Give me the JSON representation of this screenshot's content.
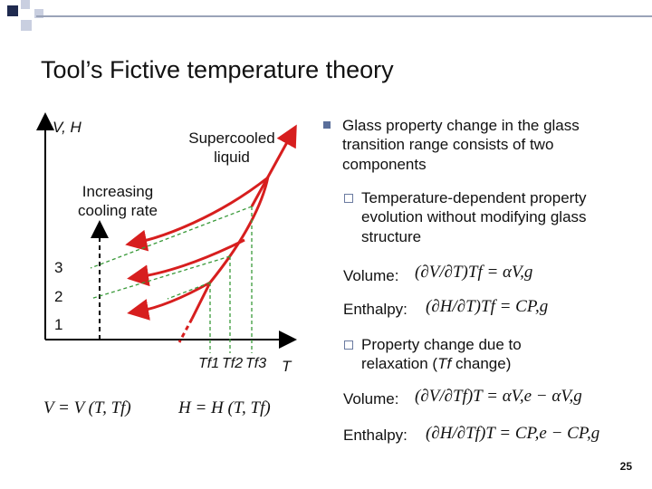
{
  "title": "Tool’s Fictive temperature theory",
  "diagram": {
    "y_axis_label": "V, H",
    "x_axis_label": "T",
    "supercooled_label": "Supercooled liquid",
    "rate_label": "Increasing cooling rate",
    "curve_labels": [
      "3",
      "2",
      "1"
    ],
    "tf_labels": [
      "Tf1",
      "Tf2",
      "Tf3"
    ],
    "eq_v": "V = V (T, Tf)",
    "eq_h": "H = H (T, Tf)"
  },
  "bullets": {
    "main": "Glass property change in the glass transition range consists of two components",
    "sub1": "Temperature-dependent property evolution without modifying glass structure",
    "sub1_volume_label": "Volume:",
    "sub1_volume_eq": "(∂V/∂T)Tf = αV,g",
    "sub1_enthalpy_label": "Enthalpy:",
    "sub1_enthalpy_eq": "(∂H/∂T)Tf = CP,g",
    "sub2_prefix": "Property change due to relaxation (",
    "sub2_italic": "Tf",
    "sub2_suffix": " change)",
    "sub2_volume_label": "Volume:",
    "sub2_volume_eq": "(∂V/∂Tf)T = αV,e − αV,g",
    "sub2_enthalpy_label": "Enthalpy:",
    "sub2_enthalpy_eq": "(∂H/∂Tf)T = CP,e − CP,g"
  },
  "page_number": "25",
  "colors": {
    "curve": "#d71e1e",
    "guide": "#3a9a3a",
    "accent": "#5a6e9a"
  }
}
